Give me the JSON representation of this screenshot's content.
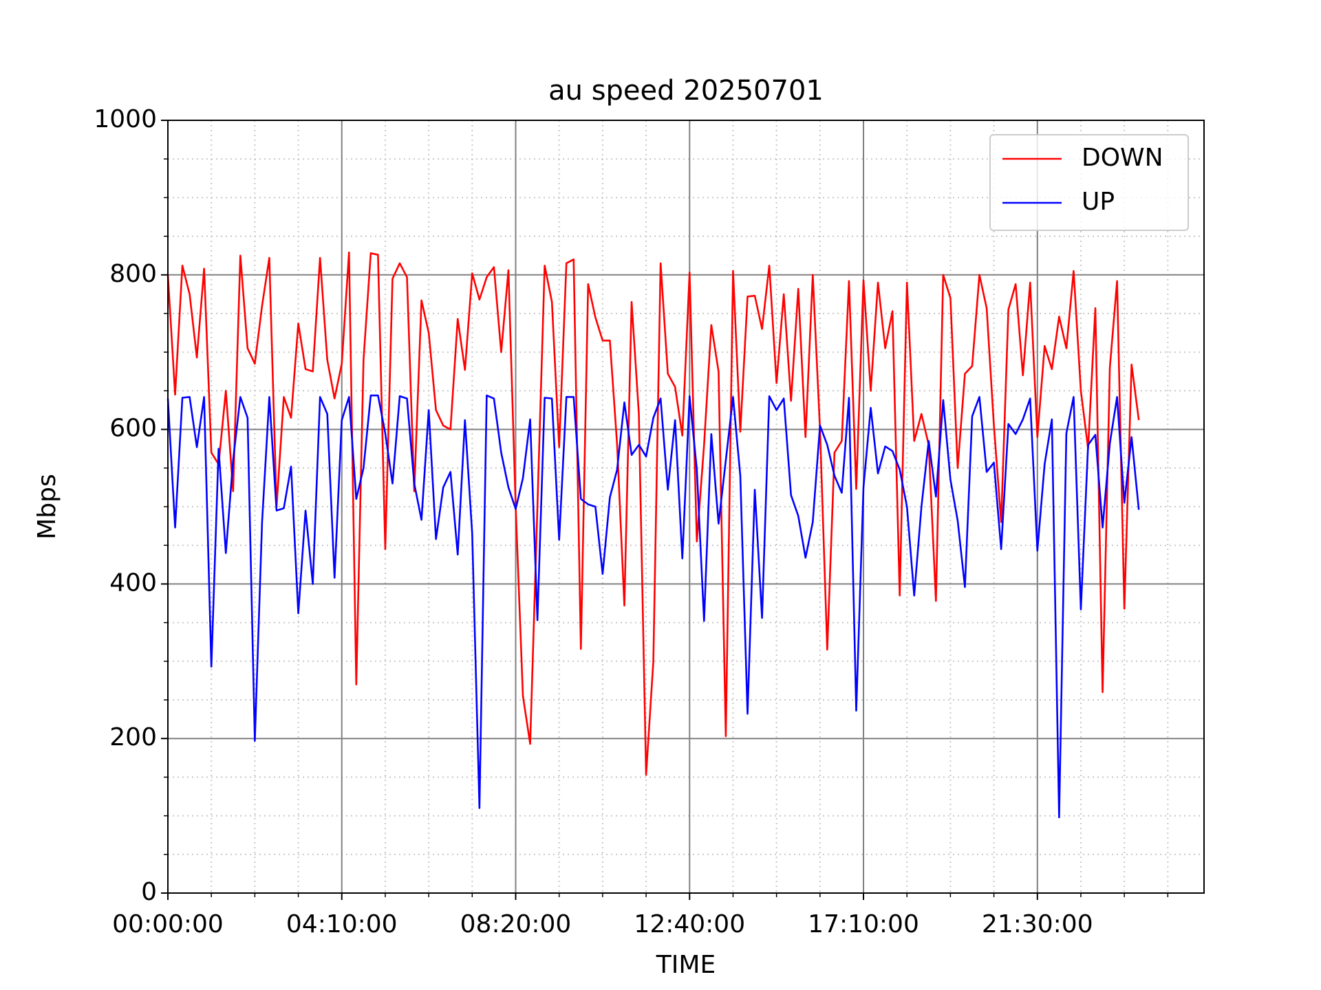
{
  "chart_data": {
    "type": "line",
    "title": "au speed 20250701",
    "x_label": "TIME",
    "y_label": "Mbps",
    "categories": [
      "00:00:00",
      null,
      null,
      null,
      null,
      null,
      null,
      null,
      null,
      null,
      null,
      null,
      null,
      null,
      null,
      null,
      null,
      null,
      null,
      null,
      null,
      null,
      null,
      null,
      "04:10:00",
      null,
      null,
      null,
      null,
      null,
      null,
      null,
      null,
      null,
      null,
      null,
      null,
      null,
      null,
      null,
      null,
      null,
      null,
      null,
      null,
      null,
      null,
      null,
      "08:20:00",
      null,
      null,
      null,
      null,
      null,
      null,
      null,
      null,
      null,
      null,
      null,
      null,
      null,
      null,
      null,
      null,
      null,
      null,
      null,
      null,
      null,
      null,
      null,
      "12:40:00",
      null,
      null,
      null,
      null,
      null,
      null,
      null,
      null,
      null,
      null,
      null,
      null,
      null,
      null,
      null,
      null,
      null,
      null,
      null,
      null,
      null,
      null,
      null,
      "17:10:00",
      null,
      null,
      null,
      null,
      null,
      null,
      null,
      null,
      null,
      null,
      null,
      null,
      null,
      null,
      null,
      null,
      null,
      null,
      null,
      null,
      null,
      null,
      null,
      "21:30:00",
      null,
      null,
      null,
      null,
      null,
      null,
      null,
      null,
      null,
      null,
      null,
      null,
      null,
      null
    ],
    "series": [
      {
        "name": "DOWN",
        "color": "#ff0000",
        "values": [
          800,
          645,
          812,
          775,
          693,
          808,
          570,
          555,
          650,
          520,
          825,
          705,
          685,
          760,
          822,
          500,
          642,
          615,
          737,
          678,
          675,
          822,
          690,
          640,
          685,
          829,
          270,
          690,
          828,
          826,
          445,
          795,
          815,
          797,
          520,
          767,
          725,
          625,
          605,
          600,
          743,
          677,
          802,
          768,
          797,
          810,
          700,
          806,
          500,
          255,
          193,
          500,
          812,
          765,
          577,
          815,
          820,
          316,
          788,
          745,
          715,
          715,
          580,
          372,
          765,
          620,
          153,
          300,
          815,
          672,
          655,
          592,
          803,
          455,
          580,
          735,
          675,
          203,
          805,
          597,
          772,
          773,
          730,
          812,
          660,
          775,
          637,
          782,
          590,
          800,
          600,
          315,
          570,
          585,
          792,
          523,
          793,
          650,
          790,
          705,
          753,
          385,
          790,
          585,
          620,
          580,
          378,
          800,
          770,
          550,
          672,
          682,
          800,
          757,
          605,
          480,
          755,
          788,
          670,
          790,
          590,
          708,
          678,
          746,
          705,
          805,
          650,
          575,
          757,
          260,
          680,
          792,
          368,
          684,
          612
        ]
      },
      {
        "name": "UP",
        "color": "#0000ff",
        "values": [
          640,
          473,
          641,
          642,
          577,
          642,
          293,
          575,
          440,
          560,
          642,
          615,
          197,
          480,
          642,
          495,
          498,
          552,
          362,
          495,
          400,
          642,
          620,
          408,
          612,
          642,
          510,
          550,
          644,
          644,
          595,
          530,
          643,
          640,
          530,
          483,
          625,
          458,
          525,
          545,
          438,
          612,
          465,
          110,
          644,
          640,
          570,
          525,
          497,
          537,
          613,
          353,
          641,
          640,
          457,
          642,
          642,
          510,
          503,
          500,
          413,
          512,
          548,
          635,
          567,
          580,
          565,
          615,
          640,
          522,
          612,
          433,
          643,
          548,
          352,
          594,
          478,
          560,
          642,
          540,
          232,
          522,
          356,
          643,
          625,
          640,
          515,
          488,
          434,
          480,
          605,
          580,
          540,
          518,
          641,
          236,
          525,
          628,
          543,
          578,
          572,
          548,
          500,
          385,
          500,
          585,
          513,
          638,
          535,
          482,
          396,
          617,
          642,
          545,
          557,
          445,
          607,
          594,
          613,
          640,
          443,
          555,
          613,
          98,
          595,
          642,
          367,
          580,
          593,
          473,
          582,
          642,
          505,
          590,
          496
        ]
      }
    ],
    "xlim": [
      0,
      143
    ],
    "xminorticks": [
      6,
      12,
      18,
      30,
      36,
      42,
      54,
      60,
      66,
      78,
      84,
      90,
      102,
      108,
      114,
      126,
      132,
      138
    ],
    "ylim": [
      0,
      1000
    ],
    "yticks": [
      0,
      200,
      400,
      600,
      800,
      1000
    ],
    "yminorticks": [
      50,
      100,
      150,
      250,
      300,
      350,
      450,
      500,
      550,
      650,
      700,
      750,
      850,
      900,
      950
    ],
    "grid": true,
    "legend": "upper right"
  }
}
